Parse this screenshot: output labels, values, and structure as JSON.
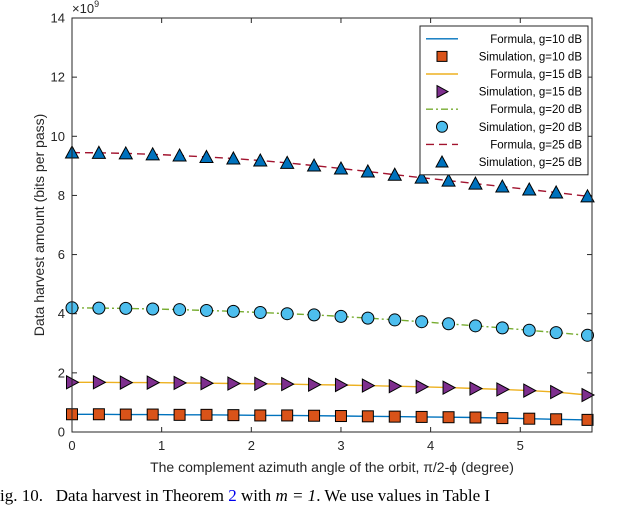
{
  "chart_data": {
    "type": "line",
    "xlabel": "The complement azimuth angle of the orbit,  π/2-ϕ (degree)",
    "ylabel": "Data harvest amount (bits per pass)",
    "y_exponent_label": "×10",
    "y_exponent_power": "9",
    "xlim": [
      0,
      5.8
    ],
    "ylim": [
      0,
      14
    ],
    "y_scale": 1000000000,
    "xticks": [
      0,
      1,
      2,
      3,
      4,
      5
    ],
    "yticks": [
      0,
      2,
      4,
      6,
      8,
      10,
      12,
      14
    ],
    "grid": false,
    "legend_position": "top-right",
    "x": [
      0,
      0.3,
      0.6,
      0.9,
      1.2,
      1.5,
      1.8,
      2.1,
      2.4,
      2.7,
      3.0,
      3.3,
      3.6,
      3.9,
      4.2,
      4.5,
      4.8,
      5.1,
      5.4,
      5.75
    ],
    "series": [
      {
        "name": "Formula, g=10 dB",
        "kind": "formula",
        "color": "#0072BD",
        "dash": "solid",
        "values": [
          0.6,
          0.6,
          0.59,
          0.59,
          0.58,
          0.58,
          0.57,
          0.56,
          0.56,
          0.55,
          0.54,
          0.53,
          0.52,
          0.51,
          0.5,
          0.49,
          0.47,
          0.45,
          0.43,
          0.41
        ]
      },
      {
        "name": "Simulation, g=10 dB",
        "kind": "simulation",
        "marker": "square",
        "color": "#D95319",
        "values": [
          0.6,
          0.6,
          0.59,
          0.59,
          0.58,
          0.58,
          0.57,
          0.56,
          0.56,
          0.55,
          0.54,
          0.53,
          0.52,
          0.51,
          0.5,
          0.49,
          0.47,
          0.45,
          0.43,
          0.41
        ]
      },
      {
        "name": "Formula, g=15 dB",
        "kind": "formula",
        "color": "#EDB120",
        "dash": "solid",
        "values": [
          1.68,
          1.68,
          1.67,
          1.67,
          1.66,
          1.65,
          1.64,
          1.63,
          1.62,
          1.6,
          1.59,
          1.57,
          1.55,
          1.53,
          1.5,
          1.47,
          1.44,
          1.4,
          1.35,
          1.25
        ]
      },
      {
        "name": "Simulation, g=15 dB",
        "kind": "simulation",
        "marker": "triangle-right",
        "color": "#7E2F8E",
        "values": [
          1.68,
          1.68,
          1.67,
          1.67,
          1.66,
          1.65,
          1.64,
          1.63,
          1.62,
          1.6,
          1.59,
          1.57,
          1.55,
          1.53,
          1.5,
          1.47,
          1.44,
          1.4,
          1.35,
          1.25
        ]
      },
      {
        "name": "Formula, g=20 dB",
        "kind": "formula",
        "color": "#77AC30",
        "dash": "dashdot",
        "values": [
          4.2,
          4.19,
          4.18,
          4.16,
          4.14,
          4.11,
          4.08,
          4.04,
          4.0,
          3.96,
          3.91,
          3.85,
          3.79,
          3.73,
          3.66,
          3.59,
          3.52,
          3.44,
          3.36,
          3.27
        ]
      },
      {
        "name": "Simulation, g=20 dB",
        "kind": "simulation",
        "marker": "circle",
        "color": "#4DBEEE",
        "values": [
          4.2,
          4.19,
          4.18,
          4.16,
          4.14,
          4.11,
          4.08,
          4.04,
          4.0,
          3.96,
          3.91,
          3.85,
          3.79,
          3.73,
          3.66,
          3.59,
          3.52,
          3.44,
          3.36,
          3.27
        ]
      },
      {
        "name": "Formula, g=25 dB",
        "kind": "formula",
        "color": "#A2142F",
        "dash": "dashed",
        "values": [
          9.45,
          9.44,
          9.42,
          9.39,
          9.35,
          9.3,
          9.25,
          9.18,
          9.1,
          9.01,
          8.91,
          8.81,
          8.7,
          8.6,
          8.5,
          8.4,
          8.3,
          8.2,
          8.1,
          7.97
        ]
      },
      {
        "name": "Simulation, g=25 dB",
        "kind": "simulation",
        "marker": "triangle-up",
        "color": "#0072BD",
        "values": [
          9.45,
          9.44,
          9.42,
          9.39,
          9.35,
          9.3,
          9.25,
          9.18,
          9.1,
          9.01,
          8.91,
          8.81,
          8.7,
          8.6,
          8.5,
          8.4,
          8.3,
          8.2,
          8.1,
          7.97
        ]
      }
    ]
  },
  "caption": {
    "prefix": "ig. 10.",
    "text_before_ref": "Data harvest in Theorem",
    "ref": "2",
    "text_after_ref": "with",
    "math": "m = 1",
    "text_end": ". We use values in Table I"
  }
}
